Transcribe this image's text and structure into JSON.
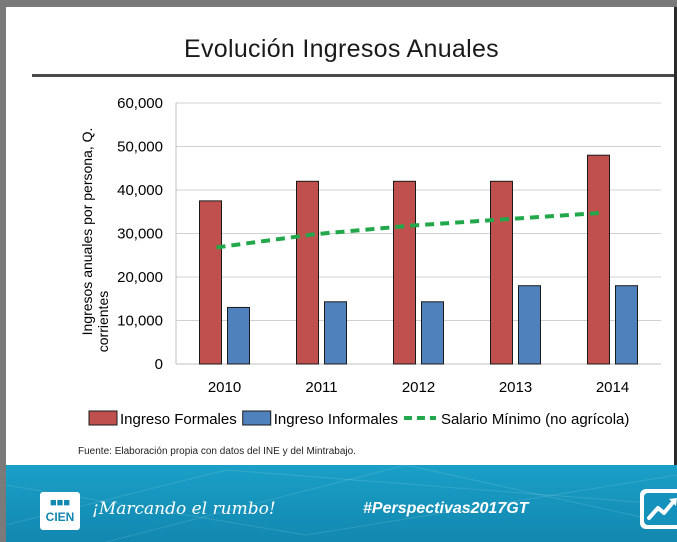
{
  "slide": {
    "title": "Evolución Ingresos Anuales",
    "source": "Fuente: Elaboración propia con datos del INE y del Mintrabajo."
  },
  "footer": {
    "logo_top": "■■■",
    "logo_bottom": "CIEN",
    "slogan": "¡Marcando el rumbo!",
    "hashtag": "#Perspectivas2017GT",
    "trend_icon": "trending-up-icon"
  },
  "colors": {
    "formales": "#c0504d",
    "informales": "#4f81bd",
    "salario": "#22a84a",
    "footer": "#1592bb"
  },
  "chart_data": {
    "type": "bar",
    "title": "Evolución Ingresos Anuales",
    "xlabel": "",
    "ylabel": "Ingresos anuales por persona, Q. corrientes",
    "categories": [
      "2010",
      "2011",
      "2012",
      "2013",
      "2014"
    ],
    "ylim": [
      0,
      60000
    ],
    "yticks": [
      "0",
      "10,000",
      "20,000",
      "30,000",
      "40,000",
      "50,000",
      "60,000"
    ],
    "grid": true,
    "legend_position": "bottom",
    "series": [
      {
        "name": "Ingreso Formales",
        "kind": "bar",
        "values": [
          37500,
          42000,
          42000,
          42000,
          48000
        ]
      },
      {
        "name": "Ingreso Informales",
        "kind": "bar",
        "values": [
          13000,
          14300,
          14300,
          18000,
          18000
        ]
      },
      {
        "name": "Salario Mínimo (no agrícola)",
        "kind": "line-dashed",
        "values": [
          26800,
          29800,
          31800,
          33300,
          34800
        ]
      }
    ]
  }
}
